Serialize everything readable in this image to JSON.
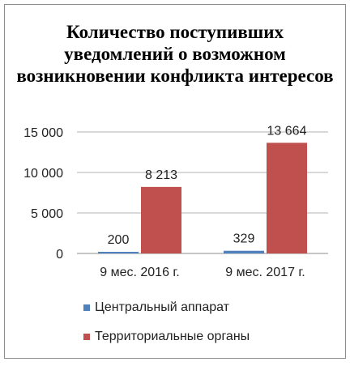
{
  "chart_data": {
    "type": "bar",
    "title": "Количество поступивших уведомлений о возможном возникновении конфликта интересов",
    "categories": [
      "9 мес. 2016 г.",
      "9 мес. 2017 г."
    ],
    "series": [
      {
        "name": "Центральный аппарат",
        "values": [
          200,
          329
        ],
        "labels": [
          "200",
          "329"
        ],
        "color": "#4f81bd"
      },
      {
        "name": "Территориальные органы",
        "values": [
          8213,
          13664
        ],
        "labels": [
          "8 213",
          "13 664"
        ],
        "color": "#c0504d"
      }
    ],
    "ylim": [
      0,
      15000
    ],
    "yticks": [
      0,
      5000,
      10000,
      15000
    ],
    "ytick_labels": [
      "0",
      "5 000",
      "10 000",
      "15 000"
    ],
    "grid": true,
    "legend_position": "bottom"
  }
}
